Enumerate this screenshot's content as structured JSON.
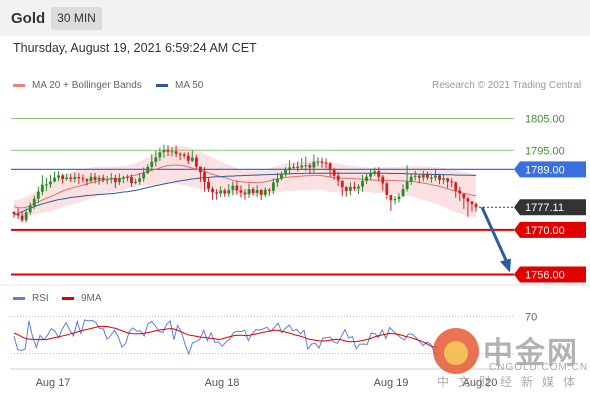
{
  "header": {
    "title": "Gold",
    "timeframe": "30 MIN"
  },
  "date_line": "Thursday, August 19, 2021 6:59:24 AM CET",
  "legend": {
    "bollinger": {
      "label": "MA 20 + Bollinger Bands",
      "color": "#f08080"
    },
    "ma50": {
      "label": "MA 50",
      "color": "#2e5b9a"
    }
  },
  "credit": "Research © 2021 Trading Central",
  "indicator_legend": {
    "rsi": {
      "label": "RSI",
      "color": "#5b7fd6"
    },
    "ma": {
      "label": "9MA",
      "color": "#e00000"
    }
  },
  "colors": {
    "bull": "#2a8a2a",
    "bear": "#cc2222",
    "resistance": "#8cc97a",
    "support": "#e00000",
    "pivot": "#3a6fe0",
    "arrow": "#2e5b9a"
  },
  "watermark": {
    "brand": "中金网",
    "url": "CNGOLD.COM.CN",
    "sub": "中文财经新媒体"
  },
  "chart_data": {
    "type": "candlestick",
    "y_range": [
      1753,
      1813
    ],
    "x_ticks": [
      "Aug 17",
      "Aug 18",
      "Aug 19",
      "Aug 20"
    ],
    "levels": [
      {
        "value": 1805.0,
        "label": "1805.00",
        "kind": "resistance"
      },
      {
        "value": 1795.0,
        "label": "1795.00",
        "kind": "resistance"
      },
      {
        "value": 1789.0,
        "label": "1789.00",
        "kind": "pivot"
      },
      {
        "value": 1770.0,
        "label": "1770.00",
        "kind": "support"
      },
      {
        "value": 1756.0,
        "label": "1756.00",
        "kind": "support"
      }
    ],
    "last_price": {
      "value": 1777.11,
      "label": "1777.11"
    },
    "forecast_arrow": {
      "from": 1777.11,
      "to": 1756.0
    },
    "series": [
      {
        "name": "Price",
        "closes": [
          1775.0,
          1774.5,
          1773.0,
          1775.5,
          1777.6,
          1779.8,
          1782.0,
          1784.2,
          1784.3,
          1785.2,
          1786.4,
          1787.1,
          1786.0,
          1786.4,
          1786.0,
          1786.6,
          1786.2,
          1785.9,
          1785.3,
          1786.7,
          1785.7,
          1786.4,
          1785.7,
          1785.9,
          1786.3,
          1785.0,
          1786.2,
          1786.4,
          1786.6,
          1784.7,
          1785.1,
          1786.2,
          1787.8,
          1789.8,
          1791.4,
          1792.8,
          1794.4,
          1795.1,
          1794.6,
          1794.7,
          1793.9,
          1793.7,
          1793.3,
          1791.7,
          1792.7,
          1789.9,
          1788.1,
          1785.1,
          1782.9,
          1781.8,
          1781.4,
          1782.4,
          1781.4,
          1782.5,
          1783.9,
          1782.4,
          1781.7,
          1781.2,
          1782.8,
          1781.6,
          1782.5,
          1781.0,
          1782.6,
          1782.3,
          1784.9,
          1786.1,
          1787.4,
          1788.8,
          1789.6,
          1789.8,
          1789.6,
          1790.2,
          1790.3,
          1789.6,
          1791.4,
          1791.5,
          1791.1,
          1790.9,
          1788.8,
          1787.0,
          1785.5,
          1783.4,
          1782.3,
          1783.5,
          1783.0,
          1783.6,
          1785.4,
          1786.7,
          1787.8,
          1788.4,
          1786.7,
          1784.6,
          1781.0,
          1779.3,
          1779.7,
          1780.5,
          1782.8,
          1785.2,
          1786.7,
          1787.0,
          1786.4,
          1787.5,
          1786.4,
          1786.4,
          1787.1,
          1785.7,
          1786.2,
          1785.2,
          1784.9,
          1782.4,
          1781.4,
          1779.9,
          1778.9,
          1778.1,
          1777.1
        ],
        "highs": [
          1775.8,
          1776.8,
          1775.7,
          1776.7,
          1778.6,
          1780.8,
          1783.6,
          1787.1,
          1786.3,
          1787.2,
          1788.3,
          1788.4,
          1787.6,
          1787.6,
          1787.6,
          1788.0,
          1787.8,
          1787.4,
          1786.2,
          1787.9,
          1787.9,
          1787.2,
          1787.4,
          1786.9,
          1787.8,
          1787.3,
          1787.7,
          1787.0,
          1787.4,
          1787.4,
          1786.1,
          1787.9,
          1789.6,
          1790.6,
          1793.8,
          1794.9,
          1795.8,
          1796.8,
          1796.6,
          1796.0,
          1796.5,
          1794.4,
          1794.3,
          1794.4,
          1794.9,
          1793.6,
          1788.8,
          1789.7,
          1786.6,
          1783.6,
          1782.8,
          1783.7,
          1783.0,
          1784.4,
          1785.3,
          1785.5,
          1784.0,
          1782.8,
          1784.6,
          1783.5,
          1784.1,
          1782.8,
          1783.3,
          1783.1,
          1786.2,
          1787.9,
          1788.3,
          1789.7,
          1791.9,
          1791.0,
          1791.5,
          1792.6,
          1793.0,
          1791.0,
          1793.7,
          1792.9,
          1792.7,
          1792.5,
          1791.3,
          1789.5,
          1788.2,
          1785.2,
          1783.8,
          1784.9,
          1785.1,
          1784.4,
          1787.2,
          1787.6,
          1789.2,
          1789.6,
          1789.7,
          1787.3,
          1785.3,
          1780.9,
          1780.7,
          1781.5,
          1784.3,
          1790.3,
          1787.8,
          1788.6,
          1787.5,
          1788.6,
          1788.3,
          1787.7,
          1789.2,
          1787.6,
          1787.5,
          1786.4,
          1786.2,
          1785.2,
          1783.5,
          1781.5,
          1780.4,
          1779.0,
          1778.6
        ],
        "lows": [
          1773.8,
          1773.4,
          1772.4,
          1772.3,
          1774.8,
          1776.6,
          1778.4,
          1780.9,
          1782.2,
          1783.2,
          1784.9,
          1785.3,
          1784.6,
          1785.5,
          1785.0,
          1784.9,
          1784.4,
          1784.8,
          1783.9,
          1784.7,
          1784.6,
          1784.2,
          1784.9,
          1784.3,
          1784.6,
          1783.1,
          1784.1,
          1784.7,
          1785.2,
          1783.5,
          1784.3,
          1784.2,
          1785.1,
          1787.5,
          1788.7,
          1789.9,
          1791.6,
          1792.6,
          1793.2,
          1793.1,
          1792.9,
          1791.9,
          1792.4,
          1790.7,
          1791.3,
          1789.1,
          1785.1,
          1782.0,
          1781.9,
          1779.4,
          1779.5,
          1780.3,
          1780.4,
          1780.4,
          1780.8,
          1781.1,
          1780.1,
          1779.5,
          1780.0,
          1780.7,
          1780.3,
          1779.4,
          1780.2,
          1780.7,
          1781.2,
          1783.5,
          1785.5,
          1786.7,
          1787.7,
          1788.9,
          1788.4,
          1789.0,
          1788.5,
          1787.6,
          1788.0,
          1790.0,
          1789.5,
          1789.3,
          1786.7,
          1785.7,
          1783.8,
          1780.6,
          1780.5,
          1780.9,
          1782.3,
          1781.2,
          1782.0,
          1784.4,
          1785.8,
          1787.0,
          1785.3,
          1782.3,
          1779.6,
          1776.0,
          1778.0,
          1778.6,
          1780.8,
          1782.1,
          1784.1,
          1785.5,
          1784.7,
          1785.2,
          1785.7,
          1784.8,
          1785.4,
          1784.3,
          1784.3,
          1783.1,
          1783.4,
          1780.1,
          1779.1,
          1776.6,
          1774.1,
          1775.8,
          1775.7
        ]
      },
      {
        "name": "MA 20",
        "values": [
          1777.3,
          1777.0,
          1776.9,
          1777.1,
          1777.7,
          1778.2,
          1778.8,
          1779.4,
          1779.9,
          1780.4,
          1781.0,
          1781.6,
          1782.2,
          1782.7,
          1783.0,
          1783.4,
          1783.7,
          1784.1,
          1784.4,
          1784.8,
          1785.1,
          1785.4,
          1785.7,
          1785.8,
          1786.0,
          1786.1,
          1786.1,
          1786.3,
          1786.7,
          1787.0,
          1787.2,
          1787.6,
          1788.0,
          1788.3,
          1788.7,
          1789.0,
          1789.5,
          1789.9,
          1790.2,
          1790.3,
          1790.4,
          1790.3,
          1790.1,
          1789.8,
          1789.4,
          1789.1,
          1788.7,
          1788.3,
          1787.9,
          1787.5,
          1787.1,
          1786.7,
          1786.4,
          1786.0,
          1785.6,
          1785.3,
          1785.1,
          1785.0,
          1784.9,
          1784.9,
          1784.8,
          1784.9,
          1785.1,
          1785.4,
          1785.7,
          1786.0,
          1786.2,
          1786.5,
          1786.6,
          1786.7,
          1786.8,
          1786.9,
          1787.0,
          1787.0,
          1787.1,
          1787.1,
          1787.0,
          1786.8,
          1786.6,
          1786.4,
          1786.3,
          1786.2,
          1786.2,
          1786.1,
          1786.1,
          1786.0,
          1785.9,
          1785.8,
          1785.7,
          1785.6,
          1785.6,
          1785.6,
          1785.6,
          1785.5,
          1785.5,
          1785.4,
          1785.4,
          1785.3,
          1785.2,
          1785.1,
          1784.9,
          1784.7,
          1784.5,
          1784.2,
          1783.9,
          1783.7,
          1783.3,
          1782.9,
          1782.5,
          1782.2,
          1781.8,
          1781.5,
          1781.2,
          1780.9,
          1780.7
        ]
      },
      {
        "name": "MA 50",
        "values": [
          1774.6,
          1775.1,
          1775.7,
          1776.3,
          1776.8,
          1777.3,
          1777.8,
          1778.2,
          1778.5,
          1778.9,
          1779.2,
          1779.5,
          1779.7,
          1779.9,
          1780.2,
          1780.3,
          1780.5,
          1780.6,
          1780.8,
          1780.9,
          1781.0,
          1781.1,
          1781.2,
          1781.3,
          1781.4,
          1781.5,
          1781.7,
          1781.9,
          1782.0,
          1782.2,
          1782.4,
          1782.7,
          1783.0,
          1783.3,
          1783.6,
          1783.9,
          1784.1,
          1784.4,
          1784.7,
          1784.9,
          1785.2,
          1785.4,
          1785.6,
          1785.8,
          1786.0,
          1786.1,
          1786.3,
          1786.4,
          1786.5,
          1786.6,
          1786.7,
          1786.7,
          1786.8,
          1786.9,
          1786.9,
          1787.0,
          1787.0,
          1787.1,
          1787.1,
          1787.2,
          1787.2,
          1787.3,
          1787.3,
          1787.4,
          1787.4,
          1787.5,
          1787.5,
          1787.6,
          1787.6,
          1787.7,
          1787.7,
          1787.7,
          1787.8,
          1787.8,
          1787.8,
          1787.8,
          1787.8,
          1787.8,
          1787.8,
          1787.8,
          1787.8,
          1787.8,
          1787.8,
          1787.8,
          1787.8,
          1787.8,
          1787.8,
          1787.8,
          1787.8,
          1787.8,
          1787.8,
          1787.8,
          1787.8,
          1787.7,
          1787.7,
          1787.7,
          1787.7,
          1787.6,
          1787.6,
          1787.6,
          1787.5,
          1787.5,
          1787.5,
          1787.4,
          1787.4,
          1787.4,
          1787.3,
          1787.3,
          1787.3,
          1787.2,
          1787.2,
          1787.2,
          1787.2,
          1787.1,
          1787.1
        ]
      },
      {
        "name": "Bollinger Upper",
        "values": [
          1779.2,
          1779.5,
          1779.9,
          1780.4,
          1781.0,
          1781.7,
          1782.5,
          1783.4,
          1784.2,
          1785.0,
          1785.8,
          1786.5,
          1787.2,
          1787.8,
          1788.2,
          1788.6,
          1788.9,
          1789.2,
          1789.4,
          1789.6,
          1789.8,
          1789.9,
          1789.9,
          1789.9,
          1789.9,
          1789.9,
          1790.0,
          1790.1,
          1790.3,
          1790.6,
          1791.0,
          1791.5,
          1792.1,
          1792.7,
          1793.4,
          1794.0,
          1794.7,
          1795.3,
          1795.8,
          1796.1,
          1796.3,
          1796.3,
          1796.2,
          1795.9,
          1795.5,
          1795.0,
          1794.5,
          1793.9,
          1793.3,
          1792.7,
          1792.1,
          1791.5,
          1790.9,
          1790.4,
          1789.9,
          1789.4,
          1789.1,
          1788.9,
          1788.8,
          1788.7,
          1788.7,
          1788.8,
          1789.0,
          1789.4,
          1789.8,
          1790.2,
          1790.5,
          1790.8,
          1791.0,
          1791.2,
          1791.3,
          1791.4,
          1791.5,
          1791.5,
          1791.6,
          1791.6,
          1791.5,
          1791.4,
          1791.2,
          1791.0,
          1790.8,
          1790.6,
          1790.4,
          1790.2,
          1790.0,
          1789.9,
          1789.8,
          1789.7,
          1789.6,
          1789.6,
          1789.6,
          1789.6,
          1789.7,
          1789.7,
          1789.8,
          1789.8,
          1789.9,
          1789.9,
          1790.0,
          1790.0,
          1790.0,
          1790.0,
          1789.9,
          1789.8,
          1789.7,
          1789.6,
          1789.4,
          1789.2,
          1789.0,
          1788.8,
          1788.5,
          1788.3,
          1788.0,
          1787.8,
          1787.6
        ]
      },
      {
        "name": "Bollinger Lower",
        "values": [
          1775.4,
          1774.5,
          1773.9,
          1773.8,
          1774.4,
          1774.7,
          1775.1,
          1775.4,
          1775.6,
          1775.8,
          1776.2,
          1776.7,
          1777.2,
          1777.6,
          1777.8,
          1778.2,
          1778.5,
          1779.0,
          1779.4,
          1780.0,
          1780.4,
          1780.9,
          1781.5,
          1781.7,
          1782.1,
          1782.3,
          1782.2,
          1782.5,
          1783.1,
          1783.4,
          1783.4,
          1783.7,
          1783.9,
          1783.9,
          1784.0,
          1784.0,
          1784.3,
          1784.5,
          1784.6,
          1784.5,
          1784.5,
          1784.3,
          1784.0,
          1783.7,
          1783.3,
          1783.2,
          1782.9,
          1782.7,
          1782.5,
          1782.3,
          1782.1,
          1781.9,
          1781.9,
          1781.6,
          1781.3,
          1781.2,
          1781.1,
          1781.1,
          1781.0,
          1781.1,
          1780.9,
          1781.0,
          1781.2,
          1781.4,
          1781.6,
          1781.8,
          1781.9,
          1782.2,
          1782.2,
          1782.2,
          1782.3,
          1782.4,
          1782.5,
          1782.5,
          1782.6,
          1782.6,
          1782.5,
          1782.2,
          1782.0,
          1781.8,
          1781.8,
          1781.8,
          1782.0,
          1782.0,
          1782.2,
          1782.1,
          1782.0,
          1781.9,
          1781.8,
          1781.6,
          1781.6,
          1781.6,
          1781.5,
          1781.3,
          1781.2,
          1781.0,
          1780.9,
          1780.7,
          1780.4,
          1780.2,
          1779.8,
          1779.4,
          1779.1,
          1778.6,
          1778.1,
          1777.8,
          1777.2,
          1776.6,
          1776.0,
          1775.6,
          1775.1,
          1774.7,
          1774.4,
          1774.0,
          1773.8
        ]
      }
    ],
    "indicator": {
      "y_range": [
        20,
        80
      ],
      "ticks": [
        70
      ],
      "rsi": [
        48.9,
        34.3,
        33.5,
        34.9,
        65.2,
        48.2,
        36.7,
        49.5,
        45.0,
        49.8,
        56.7,
        54.3,
        47.1,
        56.7,
        63.2,
        55.1,
        48.9,
        64.4,
        51.6,
        66.1,
        65.0,
        65.7,
        63.4,
        56.9,
        56.5,
        45.6,
        49.4,
        55.1,
        48.4,
        37.1,
        40.9,
        53.7,
        57.6,
        54.2,
        54.4,
        48.9,
        61.9,
        64.6,
        59.9,
        53.7,
        52.7,
        61.0,
        65.1,
        45.1,
        60.3,
        53.3,
        39.7,
        29.6,
        41.8,
        42.8,
        45.6,
        55.1,
        43.9,
        52.5,
        42.0,
        42.6,
        38.0,
        42.4,
        45.4,
        52.5,
        54.0,
        53.8,
        55.1,
        44.0,
        51.0,
        55.7,
        55.4,
        56.3,
        58.4,
        53.7,
        58.1,
        62.7,
        52.4,
        57.1,
        60.7,
        54.6,
        55.9,
        51.2,
        55.0,
        35.0,
        40.2,
        41.2,
        35.9,
        46.6,
        47.1,
        47.8,
        42.5,
        41.1,
        48.4,
        55.8,
        46.8,
        48.3,
        35.2,
        40.2,
        40.2,
        40.0,
        51.9,
        51.7,
        47.3,
        55.6,
        46.0,
        58.0,
        53.9,
        50.8,
        46.9,
        44.9,
        50.9,
        51.1,
        47.6,
        43.1,
        38.6,
        42.5,
        40.1,
        31.9,
        28.1
      ],
      "ma9": [
        52.0,
        50.3,
        48.0,
        46.0,
        45.5,
        45.5,
        45.1,
        45.2,
        45.0,
        46.3,
        47.2,
        48.0,
        49.1,
        50.1,
        51.4,
        52.6,
        53.9,
        55.1,
        56.0,
        57.1,
        58.1,
        59.2,
        59.2,
        59.0,
        57.9,
        57.1,
        55.4,
        53.7,
        52.1,
        51.5,
        51.3,
        51.3,
        52.0,
        52.7,
        53.8,
        54.7,
        55.6,
        56.0,
        56.7,
        56.6,
        55.4,
        53.4,
        51.5,
        49.8,
        49.1,
        48.4,
        47.5,
        47.4,
        46.6,
        46.2,
        45.2,
        45.7,
        47.2,
        48.3,
        49.4,
        49.8,
        49.7,
        49.1,
        50.0,
        50.8,
        51.6,
        52.8,
        53.6,
        54.6,
        55.3,
        54.8,
        53.8,
        52.7,
        51.5,
        50.0,
        49.0,
        47.6,
        45.9,
        45.1,
        44.4,
        43.6,
        43.6,
        44.0,
        44.7,
        45.4,
        45.2,
        44.0,
        42.8,
        42.9,
        43.0,
        43.7,
        44.6,
        45.6,
        47.2,
        48.8,
        49.9,
        50.6,
        51.6,
        51.4,
        50.9,
        49.9,
        48.5,
        47.5,
        46.2,
        44.8,
        43.3,
        41.2,
        38.7,
        37.2,
        37.0
      ]
    }
  }
}
